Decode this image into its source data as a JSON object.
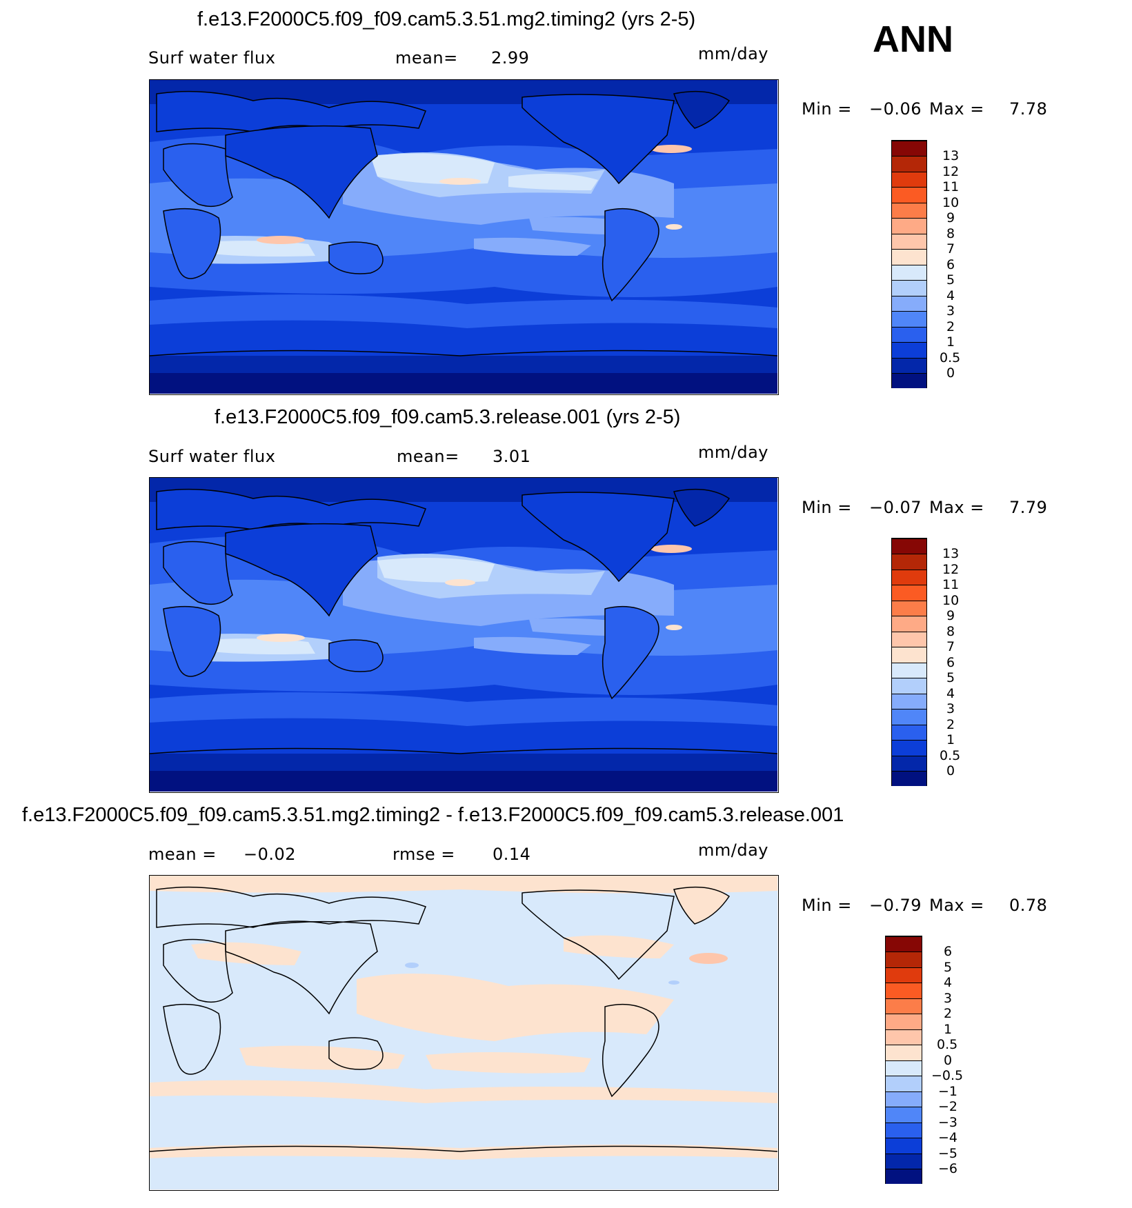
{
  "season": "ANN",
  "panels": [
    {
      "title": "f.e13.F2000C5.f09_f09.cam5.3.51.mg2.timing2 (yrs 2-5)",
      "left_label": "Surf water flux",
      "mid_label": "mean=",
      "mid_value": "2.99",
      "units": "mm/day",
      "min_label": "Min =",
      "min_value": "−0.06",
      "max_label": "Max =",
      "max_value": "7.78"
    },
    {
      "title": "f.e13.F2000C5.f09_f09.cam5.3.release.001 (yrs 2-5)",
      "left_label": "Surf water flux",
      "mid_label": "mean=",
      "mid_value": "3.01",
      "units": "mm/day",
      "min_label": "Min =",
      "min_value": "−0.07",
      "max_label": "Max =",
      "max_value": "7.79"
    },
    {
      "title": "f.e13.F2000C5.f09_f09.cam5.3.51.mg2.timing2 - f.e13.F2000C5.f09_f09.cam5.3.release.001",
      "left_label": "mean =",
      "left_value": "−0.02",
      "mid_label": "rmse =",
      "mid_value": "0.14",
      "units": "mm/day",
      "min_label": "Min =",
      "min_value": "−0.79",
      "max_label": "Max =",
      "max_value": "0.78"
    }
  ],
  "chart_data": [
    {
      "type": "heatmap",
      "title": "f.e13.F2000C5.f09_f09.cam5.3.51.mg2.timing2 (yrs 2-5)",
      "variable": "Surf water flux",
      "units": "mm/day",
      "mean": 2.99,
      "min": -0.06,
      "max": 7.78,
      "colorbar_levels": [
        "13",
        "12",
        "11",
        "10",
        "9",
        "8",
        "7",
        "6",
        "5",
        "4",
        "3",
        "2",
        "1",
        "0.5",
        "0"
      ],
      "colorbar_colors": [
        "#860705",
        "#b42707",
        "#e03b0d",
        "#fb5b23",
        "#fc7d49",
        "#feaa86",
        "#fec6ab",
        "#fde3cf",
        "#d8e9fb",
        "#b2cffb",
        "#86acfb",
        "#5086f8",
        "#2a60ee",
        "#0c3ed8",
        "#0327aa",
        "#011180"
      ]
    },
    {
      "type": "heatmap",
      "title": "f.e13.F2000C5.f09_f09.cam5.3.release.001 (yrs 2-5)",
      "variable": "Surf water flux",
      "units": "mm/day",
      "mean": 3.01,
      "min": -0.07,
      "max": 7.79,
      "colorbar_levels": [
        "13",
        "12",
        "11",
        "10",
        "9",
        "8",
        "7",
        "6",
        "5",
        "4",
        "3",
        "2",
        "1",
        "0.5",
        "0"
      ],
      "colorbar_colors": [
        "#860705",
        "#b42707",
        "#e03b0d",
        "#fb5b23",
        "#fc7d49",
        "#feaa86",
        "#fec6ab",
        "#fde3cf",
        "#d8e9fb",
        "#b2cffb",
        "#86acfb",
        "#5086f8",
        "#2a60ee",
        "#0c3ed8",
        "#0327aa",
        "#011180"
      ]
    },
    {
      "type": "heatmap",
      "title": "f.e13.F2000C5.f09_f09.cam5.3.51.mg2.timing2 - f.e13.F2000C5.f09_f09.cam5.3.release.001",
      "units": "mm/day",
      "mean": -0.02,
      "rmse": 0.14,
      "min": -0.79,
      "max": 0.78,
      "colorbar_levels": [
        "6",
        "5",
        "4",
        "3",
        "2",
        "1",
        "0.5",
        "0",
        "−0.5",
        "−1",
        "−2",
        "−3",
        "−4",
        "−5",
        "−6"
      ],
      "colorbar_colors": [
        "#860705",
        "#b42707",
        "#e03b0d",
        "#fb5b23",
        "#fc7d49",
        "#feaa86",
        "#fec6ab",
        "#fde3cf",
        "#d8e9fb",
        "#b2cffb",
        "#86acfb",
        "#5086f8",
        "#2a60ee",
        "#0c3ed8",
        "#0327aa",
        "#011180"
      ]
    }
  ]
}
